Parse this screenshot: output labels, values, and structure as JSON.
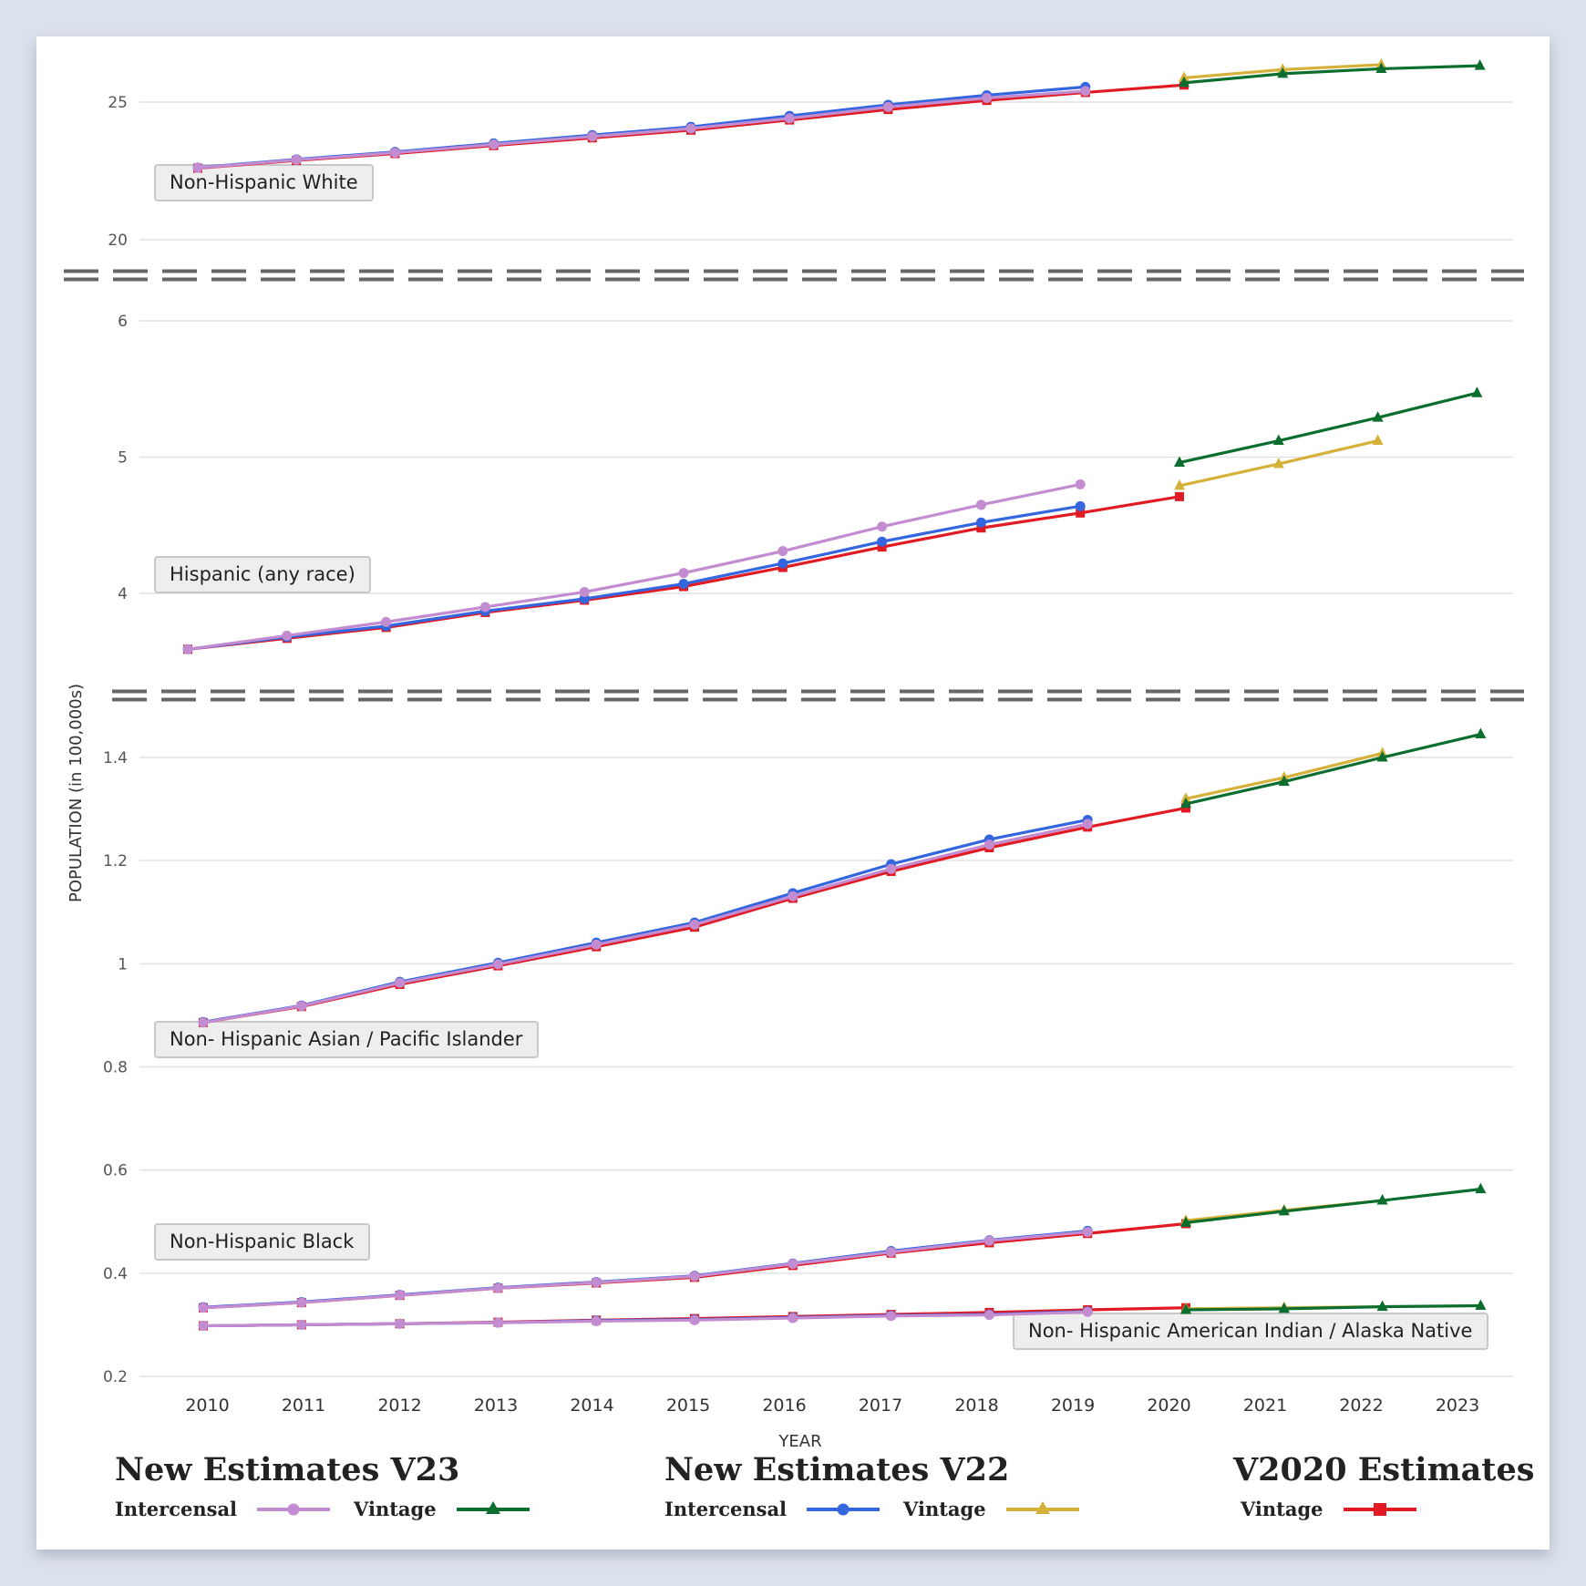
{
  "colors": {
    "v23_intercensal": "#c38bd0",
    "v23_vintage": "#0b6e2e",
    "v22_intercensal": "#3466e0",
    "v22_vintage": "#d6b13a",
    "v2020_vintage": "#e01b24"
  },
  "legend": {
    "groups": [
      {
        "title": "New Estimates V23",
        "items": [
          {
            "label": "Intercensal",
            "series": "v23_intercensal",
            "marker": "circle"
          },
          {
            "label": "Vintage",
            "series": "v23_vintage",
            "marker": "triangle"
          }
        ]
      },
      {
        "title": "New Estimates V22",
        "items": [
          {
            "label": "Intercensal",
            "series": "v22_intercensal",
            "marker": "circle"
          },
          {
            "label": "Vintage",
            "series": "v22_vintage",
            "marker": "triangle"
          }
        ]
      },
      {
        "title": "V2020 Estimates",
        "items": [
          {
            "label": "Vintage",
            "series": "v2020_vintage",
            "marker": "square"
          }
        ]
      }
    ]
  },
  "chart_data": {
    "type": "line",
    "title": "",
    "xlabel": "YEAR",
    "ylabel": "POPULATION (in 100,000s)",
    "x": [
      2010,
      2011,
      2012,
      2013,
      2014,
      2015,
      2016,
      2017,
      2018,
      2019,
      2020,
      2021,
      2022,
      2023
    ],
    "x_tick_labels": [
      "2010",
      "2011",
      "2012",
      "2013",
      "2014",
      "2015",
      "2016",
      "2017",
      "2018",
      "2019",
      "2020",
      "2021",
      "2022",
      "2023"
    ],
    "grid": true,
    "axis_breaks": true,
    "legend_position": "bottom",
    "panels": [
      {
        "name": "upper",
        "ylim": [
          19.5,
          27.2
        ],
        "y_ticks": [
          20,
          25
        ],
        "y_tick_labels": [
          "20",
          "25"
        ],
        "groups": [
          {
            "label": "Non-Hispanic White",
            "label_position": "left",
            "series": [
              {
                "key": "v22_intercensal",
                "name": "New Estimates V22 Intercensal",
                "x": [
                  2010,
                  2011,
                  2012,
                  2013,
                  2014,
                  2015,
                  2016,
                  2017,
                  2018,
                  2019
                ],
                "values": [
                  22.62,
                  22.92,
                  23.19,
                  23.5,
                  23.8,
                  24.1,
                  24.5,
                  24.9,
                  25.25,
                  25.55
                ]
              },
              {
                "key": "v2020_vintage",
                "name": "V2020 Estimates Vintage",
                "x": [
                  2010,
                  2011,
                  2012,
                  2013,
                  2014,
                  2015,
                  2016,
                  2017,
                  2018,
                  2019,
                  2020
                ],
                "values": [
                  22.6,
                  22.88,
                  23.13,
                  23.42,
                  23.7,
                  23.98,
                  24.35,
                  24.73,
                  25.06,
                  25.35,
                  25.62
                ]
              },
              {
                "key": "v23_intercensal",
                "name": "New Estimates V23 Intercensal",
                "x": [
                  2010,
                  2011,
                  2012,
                  2013,
                  2014,
                  2015,
                  2016,
                  2017,
                  2018,
                  2019
                ],
                "values": [
                  22.61,
                  22.9,
                  23.16,
                  23.46,
                  23.75,
                  24.04,
                  24.41,
                  24.82,
                  25.15,
                  25.4
                ]
              },
              {
                "key": "v22_vintage",
                "name": "New Estimates V22 Vintage",
                "x": [
                  2020,
                  2021,
                  2022
                ],
                "values": [
                  25.88,
                  26.18,
                  26.36
                ]
              },
              {
                "key": "v23_vintage",
                "name": "New Estimates V23 Vintage",
                "x": [
                  2020,
                  2021,
                  2022,
                  2023
                ],
                "values": [
                  25.7,
                  26.03,
                  26.21,
                  26.32
                ]
              }
            ]
          }
        ]
      },
      {
        "name": "middle",
        "ylim": [
          3.35,
          6.25
        ],
        "y_ticks": [
          4,
          5,
          6
        ],
        "y_tick_labels": [
          "4",
          "5",
          "6"
        ],
        "groups": [
          {
            "label": "Hispanic (any race)",
            "label_position": "left",
            "series": [
              {
                "key": "v2020_vintage",
                "name": "V2020 Estimates Vintage",
                "x": [
                  2010,
                  2011,
                  2012,
                  2013,
                  2014,
                  2015,
                  2016,
                  2017,
                  2018,
                  2019,
                  2020
                ],
                "values": [
                  3.59,
                  3.67,
                  3.75,
                  3.86,
                  3.95,
                  4.05,
                  4.19,
                  4.34,
                  4.48,
                  4.59,
                  4.71
                ]
              },
              {
                "key": "v22_intercensal",
                "name": "New Estimates V22 Intercensal",
                "x": [
                  2010,
                  2011,
                  2012,
                  2013,
                  2014,
                  2015,
                  2016,
                  2017,
                  2018,
                  2019
                ],
                "values": [
                  3.59,
                  3.68,
                  3.76,
                  3.87,
                  3.96,
                  4.07,
                  4.22,
                  4.38,
                  4.52,
                  4.64
                ]
              },
              {
                "key": "v23_intercensal",
                "name": "New Estimates V23 Intercensal",
                "x": [
                  2010,
                  2011,
                  2012,
                  2013,
                  2014,
                  2015,
                  2016,
                  2017,
                  2018,
                  2019
                ],
                "values": [
                  3.59,
                  3.69,
                  3.79,
                  3.9,
                  4.01,
                  4.15,
                  4.31,
                  4.49,
                  4.65,
                  4.8
                ]
              },
              {
                "key": "v22_vintage",
                "name": "New Estimates V22 Vintage",
                "x": [
                  2020,
                  2021,
                  2022
                ],
                "values": [
                  4.79,
                  4.95,
                  5.12
                ]
              },
              {
                "key": "v23_vintage",
                "name": "New Estimates V23 Vintage",
                "x": [
                  2020,
                  2021,
                  2022,
                  2023
                ],
                "values": [
                  4.96,
                  5.12,
                  5.29,
                  5.47
                ]
              }
            ]
          }
        ]
      },
      {
        "name": "lower",
        "ylim": [
          0.2,
          1.52
        ],
        "y_ticks": [
          0.2,
          0.4,
          0.6,
          0.8,
          1.0,
          1.2,
          1.4
        ],
        "y_tick_labels": [
          "0.2",
          "0.4",
          "0.6",
          "0.8",
          "1",
          "1.2",
          "1.4"
        ],
        "groups": [
          {
            "label": "Non- Hispanic Asian / Pacific Islander",
            "label_position": "left",
            "series": [
              {
                "key": "v2020_vintage",
                "name": "V2020 Estimates Vintage",
                "x": [
                  2010,
                  2011,
                  2012,
                  2013,
                  2014,
                  2015,
                  2016,
                  2017,
                  2018,
                  2019,
                  2020
                ],
                "values": [
                  0.886,
                  0.917,
                  0.96,
                  0.996,
                  1.033,
                  1.071,
                  1.127,
                  1.179,
                  1.225,
                  1.265,
                  1.302
                ]
              },
              {
                "key": "v22_intercensal",
                "name": "New Estimates V22 Intercensal",
                "x": [
                  2010,
                  2011,
                  2012,
                  2013,
                  2014,
                  2015,
                  2016,
                  2017,
                  2018,
                  2019
                ],
                "values": [
                  0.887,
                  0.919,
                  0.965,
                  1.002,
                  1.041,
                  1.08,
                  1.137,
                  1.193,
                  1.241,
                  1.279
                ]
              },
              {
                "key": "v23_intercensal",
                "name": "New Estimates V23 Intercensal",
                "x": [
                  2010,
                  2011,
                  2012,
                  2013,
                  2014,
                  2015,
                  2016,
                  2017,
                  2018,
                  2019
                ],
                "values": [
                  0.886,
                  0.918,
                  0.963,
                  0.999,
                  1.037,
                  1.076,
                  1.131,
                  1.184,
                  1.231,
                  1.271
                ]
              },
              {
                "key": "v22_vintage",
                "name": "New Estimates V22 Vintage",
                "x": [
                  2020,
                  2021,
                  2022
                ],
                "values": [
                  1.32,
                  1.361,
                  1.408
                ]
              },
              {
                "key": "v23_vintage",
                "name": "New Estimates V23 Vintage",
                "x": [
                  2020,
                  2021,
                  2022,
                  2023
                ],
                "values": [
                  1.31,
                  1.353,
                  1.4,
                  1.445
                ]
              }
            ]
          },
          {
            "label": "Non-Hispanic Black",
            "label_position": "left",
            "series": [
              {
                "key": "v2020_vintage",
                "name": "V2020 Estimates Vintage",
                "x": [
                  2010,
                  2011,
                  2012,
                  2013,
                  2014,
                  2015,
                  2016,
                  2017,
                  2018,
                  2019,
                  2020
                ],
                "values": [
                  0.333,
                  0.343,
                  0.357,
                  0.371,
                  0.381,
                  0.392,
                  0.415,
                  0.439,
                  0.459,
                  0.477,
                  0.496
                ]
              },
              {
                "key": "v22_intercensal",
                "name": "New Estimates V22 Intercensal",
                "x": [
                  2010,
                  2011,
                  2012,
                  2013,
                  2014,
                  2015,
                  2016,
                  2017,
                  2018,
                  2019
                ],
                "values": [
                  0.334,
                  0.344,
                  0.358,
                  0.372,
                  0.383,
                  0.395,
                  0.419,
                  0.443,
                  0.464,
                  0.482
                ]
              },
              {
                "key": "v23_intercensal",
                "name": "New Estimates V23 Intercensal",
                "x": [
                  2010,
                  2011,
                  2012,
                  2013,
                  2014,
                  2015,
                  2016,
                  2017,
                  2018,
                  2019
                ],
                "values": [
                  0.333,
                  0.343,
                  0.357,
                  0.371,
                  0.382,
                  0.394,
                  0.418,
                  0.441,
                  0.463,
                  0.48
                ]
              },
              {
                "key": "v22_vintage",
                "name": "New Estimates V22 Vintage",
                "x": [
                  2020,
                  2021,
                  2022
                ],
                "values": [
                  0.502,
                  0.522,
                  0.541
                ]
              },
              {
                "key": "v23_vintage",
                "name": "New Estimates V23 Vintage",
                "x": [
                  2020,
                  2021,
                  2022,
                  2023
                ],
                "values": [
                  0.498,
                  0.52,
                  0.541,
                  0.563
                ]
              }
            ]
          },
          {
            "label": "Non- Hispanic American Indian / Alaska Native",
            "label_position": "right",
            "series": [
              {
                "key": "v2020_vintage",
                "name": "V2020 Estimates Vintage",
                "x": [
                  2010,
                  2011,
                  2012,
                  2013,
                  2014,
                  2015,
                  2016,
                  2017,
                  2018,
                  2019,
                  2020
                ],
                "values": [
                  0.298,
                  0.3,
                  0.302,
                  0.305,
                  0.309,
                  0.312,
                  0.316,
                  0.32,
                  0.324,
                  0.329,
                  0.333
                ]
              },
              {
                "key": "v22_intercensal",
                "name": "New Estimates V22 Intercensal",
                "x": [
                  2010,
                  2011,
                  2012,
                  2013,
                  2014,
                  2015,
                  2016,
                  2017,
                  2018,
                  2019
                ],
                "values": [
                  0.298,
                  0.3,
                  0.302,
                  0.304,
                  0.308,
                  0.31,
                  0.314,
                  0.318,
                  0.32,
                  0.326
                ]
              },
              {
                "key": "v23_intercensal",
                "name": "New Estimates V23 Intercensal",
                "x": [
                  2010,
                  2011,
                  2012,
                  2013,
                  2014,
                  2015,
                  2016,
                  2017,
                  2018,
                  2019
                ],
                "values": [
                  0.298,
                  0.3,
                  0.302,
                  0.304,
                  0.307,
                  0.309,
                  0.313,
                  0.317,
                  0.319,
                  0.325
                ]
              },
              {
                "key": "v22_vintage",
                "name": "New Estimates V22 Vintage",
                "x": [
                  2020,
                  2021,
                  2022
                ],
                "values": [
                  0.331,
                  0.333,
                  0.335
                ]
              },
              {
                "key": "v23_vintage",
                "name": "New Estimates V23 Vintage",
                "x": [
                  2020,
                  2021,
                  2022,
                  2023
                ],
                "values": [
                  0.329,
                  0.331,
                  0.335,
                  0.337
                ]
              }
            ]
          }
        ]
      }
    ]
  }
}
